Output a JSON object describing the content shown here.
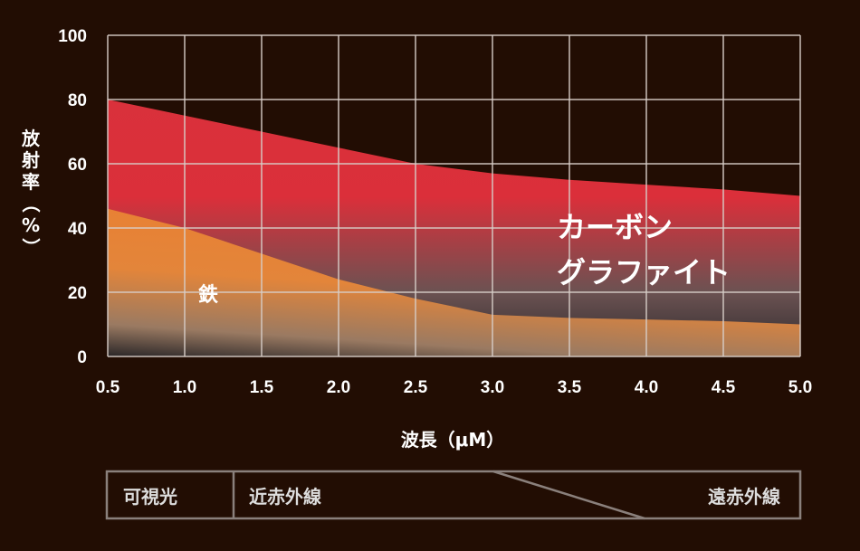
{
  "chart_data": {
    "type": "area",
    "xlabel": "波長（μM）",
    "ylabel": "放射率（%）",
    "ylabel_chars": [
      "放",
      "射",
      "率",
      "（",
      "%",
      "）"
    ],
    "xlim": [
      0.5,
      5.0
    ],
    "ylim": [
      0,
      100
    ],
    "xticks": [
      "0.5",
      "1.0",
      "1.5",
      "2.0",
      "2.5",
      "3.0",
      "3.5",
      "4.0",
      "4.5",
      "5.0"
    ],
    "yticks": [
      "0",
      "20",
      "40",
      "60",
      "80",
      "100"
    ],
    "grid": true,
    "x": [
      0.5,
      1.0,
      1.5,
      2.0,
      2.5,
      3.0,
      3.5,
      4.0,
      4.5,
      5.0
    ],
    "series": [
      {
        "name": "カーボングラファイト",
        "label_lines": [
          "カーボン",
          "グラファイト"
        ],
        "color": "#d9313b",
        "values": [
          80,
          75,
          70,
          65,
          60,
          57,
          55,
          53.5,
          52,
          50
        ]
      },
      {
        "name": "鉄",
        "label_lines": [
          "鉄"
        ],
        "color": "#e98033",
        "values": [
          46,
          40,
          32,
          24,
          18,
          13,
          12,
          11.5,
          11,
          10
        ]
      }
    ],
    "bands": {
      "visible": "可視光",
      "near_ir": "近赤外線",
      "far_ir": "遠赤外線"
    }
  }
}
